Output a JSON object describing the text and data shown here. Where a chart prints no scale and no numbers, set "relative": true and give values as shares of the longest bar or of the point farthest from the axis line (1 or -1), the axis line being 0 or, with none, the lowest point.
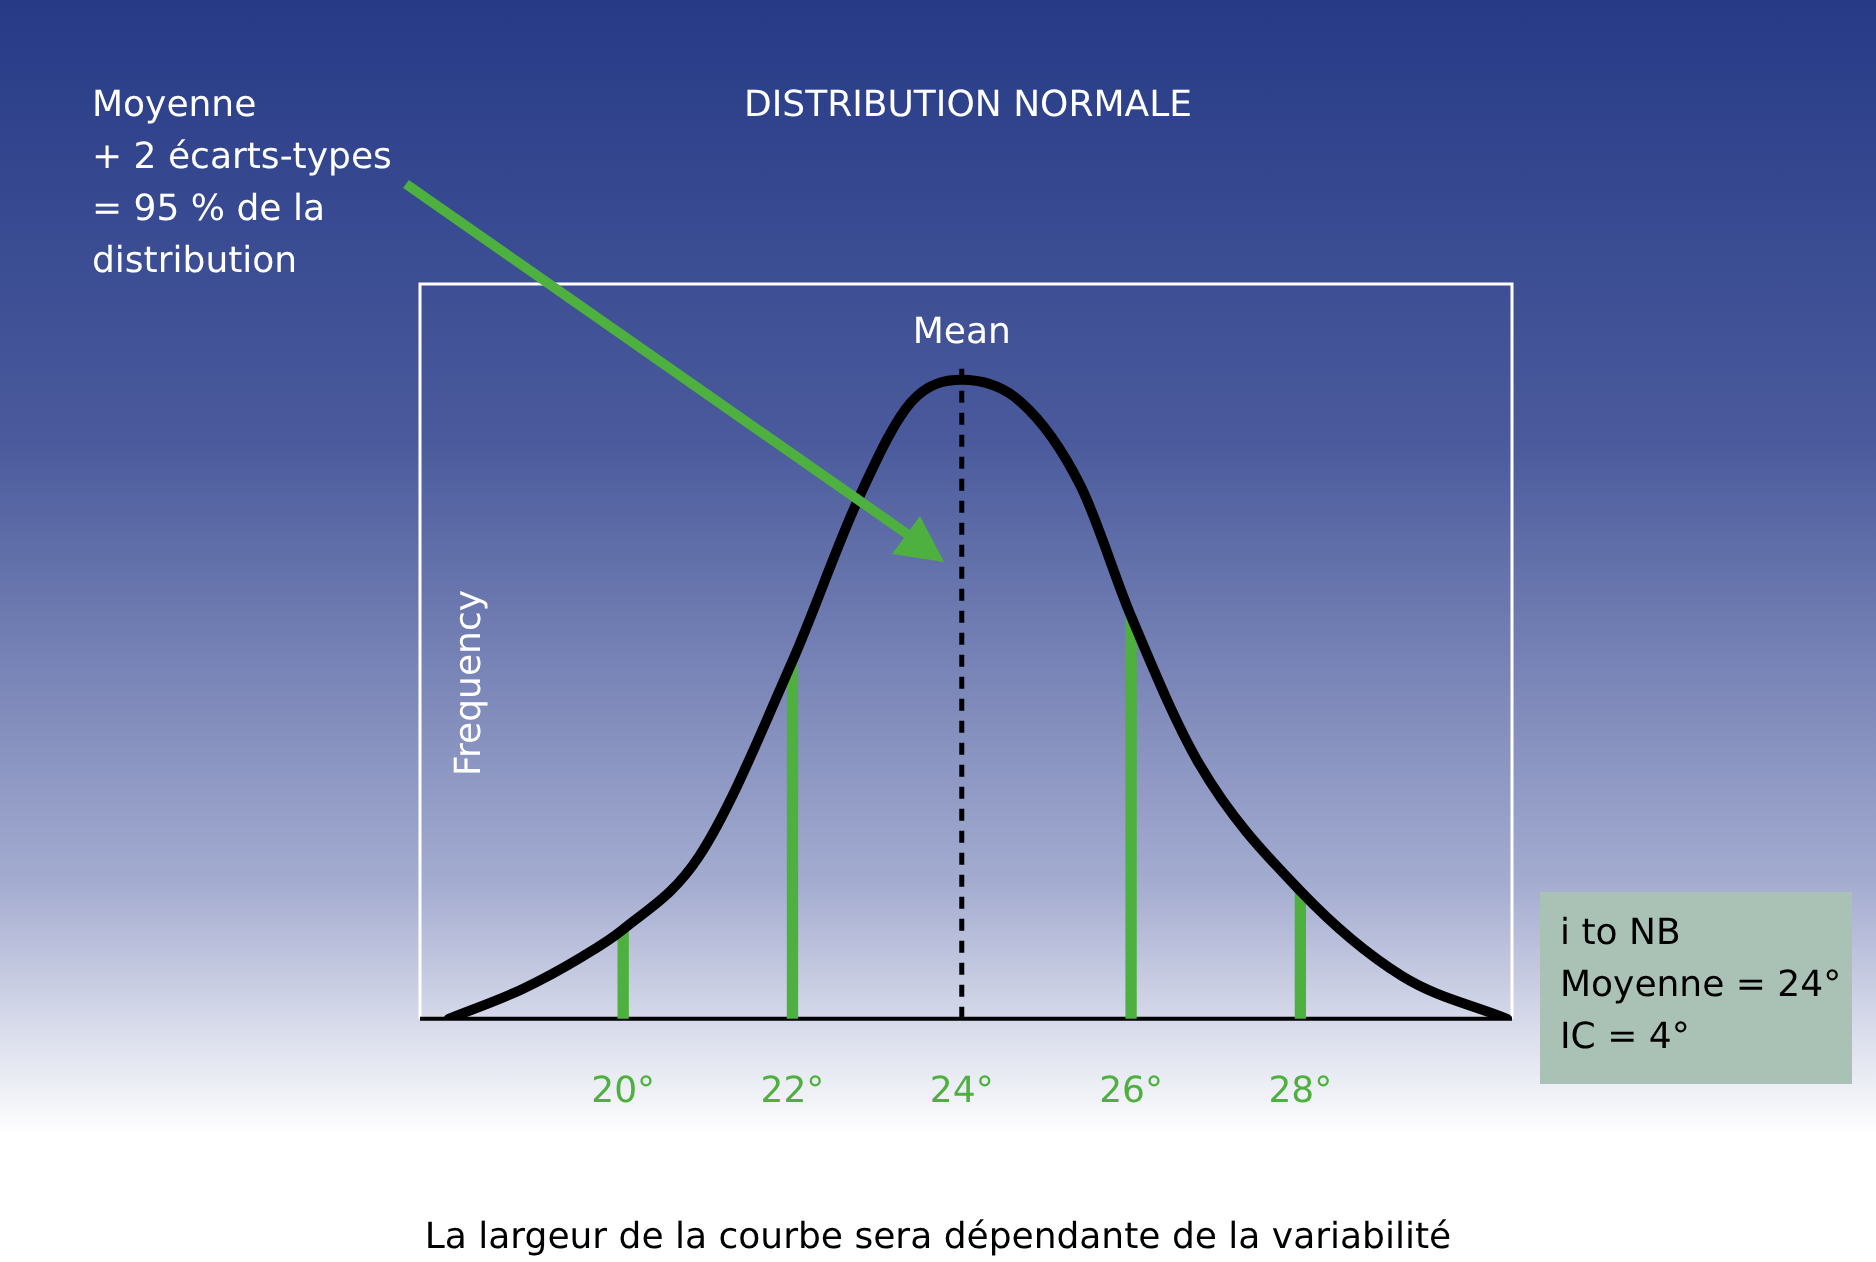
{
  "chart_data": {
    "type": "line",
    "title": "DISTRIBUTION NORMALE",
    "ylabel": "Frequency",
    "relative": true,
    "grid": false,
    "legend": false,
    "marker": "none",
    "xlim": [
      17.6,
      30.5
    ],
    "xticks": [
      {
        "value": 20,
        "label": "20°"
      },
      {
        "value": 22,
        "label": "22°"
      },
      {
        "value": 24,
        "label": "24°"
      },
      {
        "value": 26,
        "label": "26°"
      },
      {
        "value": 28,
        "label": "28°"
      }
    ],
    "series": [
      {
        "color": "#000000",
        "x": [
          17.94,
          18.8,
          19.5,
          20,
          20.9,
          22,
          22.8,
          23.4,
          24,
          24.7,
          25.4,
          26,
          26.8,
          28,
          29.2,
          30.44
        ],
        "values": [
          0,
          0.046,
          0.096,
          0.14,
          0.255,
          0.56,
          0.82,
          0.965,
          1,
          0.965,
          0.835,
          0.63,
          0.4,
          0.2,
          0.067,
          0
        ]
      },
      {
        "type": "bar",
        "color": "#4db03f",
        "x": [
          20,
          22,
          26,
          28
        ],
        "values": [
          0.14,
          0.56,
          0.63,
          0.2
        ]
      }
    ],
    "ref_lines": [
      {
        "axis": "x",
        "value": 24,
        "label": "Mean",
        "color": "#000000",
        "line_style": "dashed"
      }
    ],
    "annotations": [
      "Moyenne\n+ 2 écarts-types\n= 95 % de la\ndistribution",
      "i to NB\nMoyenne = 24°\nIC = 4°",
      "La largeur de la courbe sera dépendante de la variabilité"
    ]
  }
}
